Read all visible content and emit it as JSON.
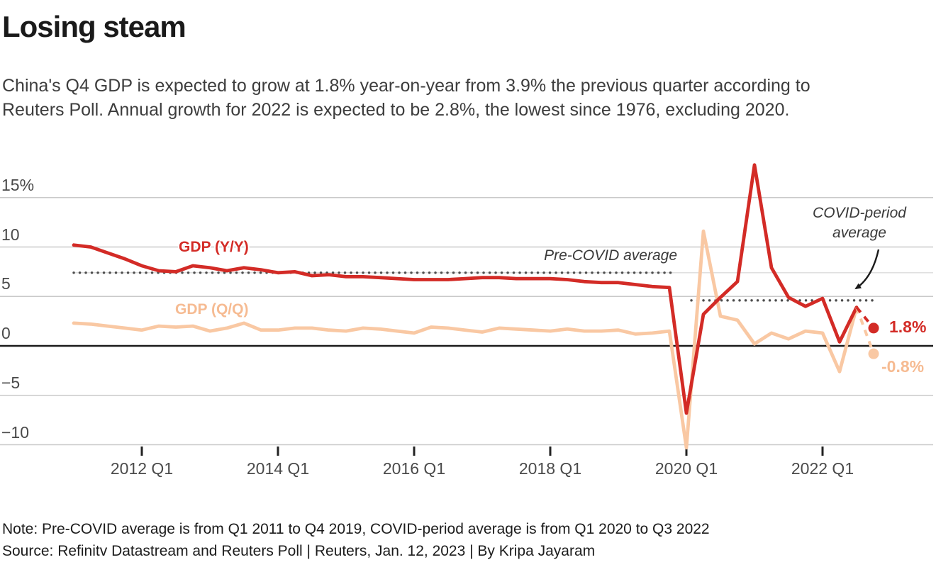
{
  "header": {
    "title": "Losing steam",
    "subtitle_line1": "China's Q4 GDP is expected to grow at 1.8% year-on-year from 3.9% the previous quarter according to",
    "subtitle_line2": "Reuters Poll. Annual growth for 2022 is expected to be 2.8%, the lowest since 1976, excluding 2020."
  },
  "footer": {
    "note": "Note: Pre-COVID average is from Q1 2011 to Q4 2019, COVID-period average is from Q1 2020 to Q3 2022",
    "source": "Source: Refinitv Datastream and Reuters Poll | Reuters, Jan. 12, 2023 | By Kripa Jayaram"
  },
  "chart_data": {
    "type": "line",
    "x_unit": "quarter",
    "x_start": "2011 Q1",
    "x_end": "2022 Q4",
    "grid": "horizontal",
    "ylim": [
      -12.5,
      19
    ],
    "x_ticks": [
      {
        "label": "2012 Q1",
        "q": 4
      },
      {
        "label": "2014 Q1",
        "q": 12
      },
      {
        "label": "2016 Q1",
        "q": 20
      },
      {
        "label": "2018 Q1",
        "q": 28
      },
      {
        "label": "2020 Q1",
        "q": 36
      },
      {
        "label": "2022 Q1",
        "q": 44
      }
    ],
    "y_ticks": [
      {
        "label": "15%",
        "value": 15
      },
      {
        "label": "10",
        "value": 10
      },
      {
        "label": "5",
        "value": 5
      },
      {
        "label": "0",
        "value": 0
      },
      {
        "label": "−5",
        "value": -5
      },
      {
        "label": "−10",
        "value": -10
      }
    ],
    "series": [
      {
        "name": "GDP (Y/Y)",
        "color": "#d32b26",
        "start": "2011 Q1",
        "values": [
          10.2,
          10.0,
          9.4,
          8.8,
          8.1,
          7.6,
          7.5,
          8.1,
          7.9,
          7.6,
          7.9,
          7.7,
          7.4,
          7.5,
          7.1,
          7.2,
          7.0,
          7.0,
          6.9,
          6.8,
          6.7,
          6.7,
          6.7,
          6.8,
          6.9,
          6.9,
          6.8,
          6.8,
          6.8,
          6.7,
          6.5,
          6.4,
          6.4,
          6.2,
          6.0,
          5.9,
          -6.8,
          3.2,
          4.9,
          6.5,
          18.3,
          7.9,
          4.9,
          4.0,
          4.8,
          0.4,
          3.9
        ],
        "forecast_quarter": "2022 Q4",
        "forecast_value": 1.8,
        "forecast_label": "1.8%"
      },
      {
        "name": "GDP (Q/Q)",
        "color": "#f9c8a3",
        "start": "2011 Q1",
        "values": [
          2.3,
          2.2,
          2.0,
          1.8,
          1.6,
          2.0,
          1.9,
          2.0,
          1.5,
          1.8,
          2.3,
          1.6,
          1.6,
          1.8,
          1.8,
          1.6,
          1.5,
          1.8,
          1.7,
          1.5,
          1.3,
          1.9,
          1.8,
          1.6,
          1.4,
          1.8,
          1.7,
          1.6,
          1.5,
          1.7,
          1.5,
          1.5,
          1.6,
          1.2,
          1.3,
          1.5,
          -10.3,
          11.6,
          3.0,
          2.6,
          0.2,
          1.3,
          0.7,
          1.5,
          1.3,
          -2.6,
          3.9
        ],
        "forecast_quarter": "2022 Q4",
        "forecast_value": -0.8,
        "forecast_label": "-0.8%"
      }
    ],
    "reference_lines": [
      {
        "label": "Pre-COVID average",
        "value": 7.4,
        "from_q": 0,
        "to_q": 35,
        "style": "dotted"
      },
      {
        "label": "COVID-period average",
        "value": 4.6,
        "from_q": 36,
        "to_q": 47,
        "style": "dotted"
      }
    ],
    "colors": {
      "grid": "#c9c9c9",
      "zero_line": "#1a1a1a",
      "dotted_reference": "#4c4c4c",
      "reference_rule": "#dcdcdc",
      "axis_text": "#4a4a4a",
      "arrow": "#1a1a1a"
    }
  }
}
